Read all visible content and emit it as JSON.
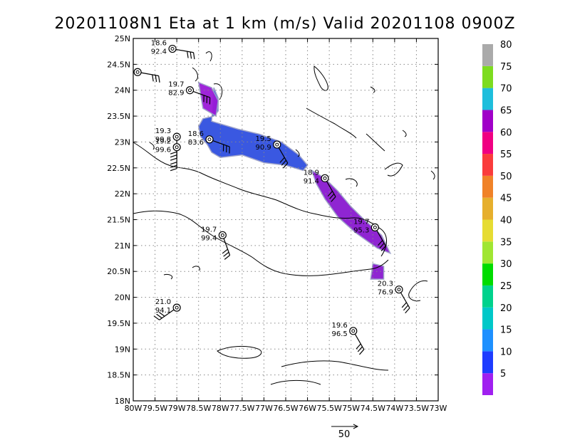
{
  "title": "20201108N1 Eta at 1 km (m/s) Valid 20201108 0900Z",
  "map": {
    "lon_range": [
      -80,
      -73
    ],
    "lat_range": [
      18,
      25
    ],
    "x_ticks": [
      "80W",
      "79.5W",
      "79W",
      "78.5W",
      "78W",
      "77.5W",
      "77W",
      "76.5W",
      "76W",
      "75.5W",
      "75W",
      "74.5W",
      "74W",
      "73.5W",
      "73W"
    ],
    "y_ticks": [
      "18N",
      "18.5N",
      "19N",
      "19.5N",
      "20N",
      "20.5N",
      "21N",
      "21.5N",
      "22N",
      "22.5N",
      "23N",
      "23.5N",
      "24N",
      "24.5N",
      "25N"
    ],
    "grid": true
  },
  "stations": [
    {
      "lon": -79.1,
      "lat": 24.8,
      "l1": "18.6",
      "l2": "92.4",
      "label_side": "left",
      "barb_dir": 100
    },
    {
      "lon": -79.9,
      "lat": 24.35,
      "l1": "",
      "l2": "",
      "label_side": "left",
      "barb_dir": 100
    },
    {
      "lon": -78.7,
      "lat": 24.0,
      "l1": "19.7",
      "l2": "82.9",
      "label_side": "left",
      "barb_dir": 110
    },
    {
      "lon": -79.0,
      "lat": 23.1,
      "l1": "19.3",
      "l2": "99.8",
      "label_side": "left",
      "barb_dir": 180
    },
    {
      "lon": -79.0,
      "lat": 22.9,
      "l1": "19.2",
      "l2": "99.6",
      "label_side": "left",
      "barb_dir": 180
    },
    {
      "lon": -78.25,
      "lat": 23.05,
      "l1": "18.6",
      "l2": "83.6",
      "label_side": "left",
      "barb_dir": 110
    },
    {
      "lon": -76.7,
      "lat": 22.95,
      "l1": "19.5",
      "l2": "90.9",
      "label_side": "left",
      "barb_dir": 150
    },
    {
      "lon": -75.6,
      "lat": 22.3,
      "l1": "18.9",
      "l2": "91.4",
      "label_side": "left",
      "barb_dir": 150
    },
    {
      "lon": -74.45,
      "lat": 21.35,
      "l1": "19.7",
      "l2": "95.3",
      "label_side": "left",
      "barb_dir": 150
    },
    {
      "lon": -77.95,
      "lat": 21.2,
      "l1": "19.7",
      "l2": "99.4",
      "label_side": "left",
      "barb_dir": 160
    },
    {
      "lon": -73.9,
      "lat": 20.15,
      "l1": "20.3",
      "l2": "76.9",
      "label_side": "left",
      "barb_dir": 150
    },
    {
      "lon": -79.0,
      "lat": 19.8,
      "l1": "21.0",
      "l2": "94.1",
      "label_side": "left",
      "barb_dir": 235
    },
    {
      "lon": -74.95,
      "lat": 19.35,
      "l1": "19.6",
      "l2": "96.5",
      "label_side": "left",
      "barb_dir": 150
    }
  ],
  "wind_swath": [
    {
      "lon": [
        -78.15,
        -78.05,
        -78.05,
        -78.15,
        -78.4,
        -78.5,
        -78.45,
        -78.3,
        -78.2,
        -78.0,
        -77.5,
        -77.0,
        -76.5,
        -76.1,
        -76.0,
        -76.2,
        -76.6,
        -77.1,
        -77.6,
        -78.2
      ],
      "lat": [
        24.05,
        23.85,
        23.6,
        23.5,
        23.45,
        23.3,
        23.1,
        22.95,
        22.8,
        22.7,
        22.75,
        22.6,
        22.55,
        22.45,
        22.55,
        22.75,
        23.0,
        23.15,
        23.25,
        23.4
      ],
      "color": "#3050e0"
    },
    {
      "lon": [
        -78.5,
        -78.2,
        -78.05,
        -78.1,
        -78.4
      ],
      "lat": [
        24.15,
        24.05,
        23.8,
        23.5,
        23.65
      ],
      "color": "#9a1ad8"
    },
    {
      "lon": [
        -75.9,
        -75.6,
        -75.3,
        -75.0,
        -74.7,
        -74.3,
        -74.1,
        -74.4,
        -74.9,
        -75.3,
        -75.6,
        -75.8
      ],
      "lat": [
        22.45,
        22.3,
        22.05,
        21.75,
        21.5,
        21.2,
        20.85,
        20.95,
        21.25,
        21.55,
        21.9,
        22.2
      ],
      "color": "#8a1ad0"
    },
    {
      "lon": [
        -74.5,
        -74.25,
        -74.25,
        -74.55
      ],
      "lat": [
        20.65,
        20.6,
        20.35,
        20.35
      ],
      "color": "#8a1ad0"
    }
  ],
  "colorbar": {
    "bins": [
      {
        "color": "#a020f0",
        "label": "5"
      },
      {
        "color": "#1e3cff",
        "label": "10"
      },
      {
        "color": "#1e90ff",
        "label": "15"
      },
      {
        "color": "#00c8c8",
        "label": "20"
      },
      {
        "color": "#00d28c",
        "label": "25"
      },
      {
        "color": "#00dc00",
        "label": "30"
      },
      {
        "color": "#a0e632",
        "label": "35"
      },
      {
        "color": "#e6dc32",
        "label": "40"
      },
      {
        "color": "#e6af2d",
        "label": "45"
      },
      {
        "color": "#f08228",
        "label": "50"
      },
      {
        "color": "#fa3c3c",
        "label": "55"
      },
      {
        "color": "#f00082",
        "label": "60"
      },
      {
        "color": "#a000c8",
        "label": "65"
      },
      {
        "color": "#1ebedc",
        "label": "70"
      },
      {
        "color": "#7ddc1f",
        "label": "75"
      },
      {
        "color": "#aaaaaa",
        "label": "80"
      }
    ]
  },
  "reference_vector": {
    "label": "50"
  }
}
